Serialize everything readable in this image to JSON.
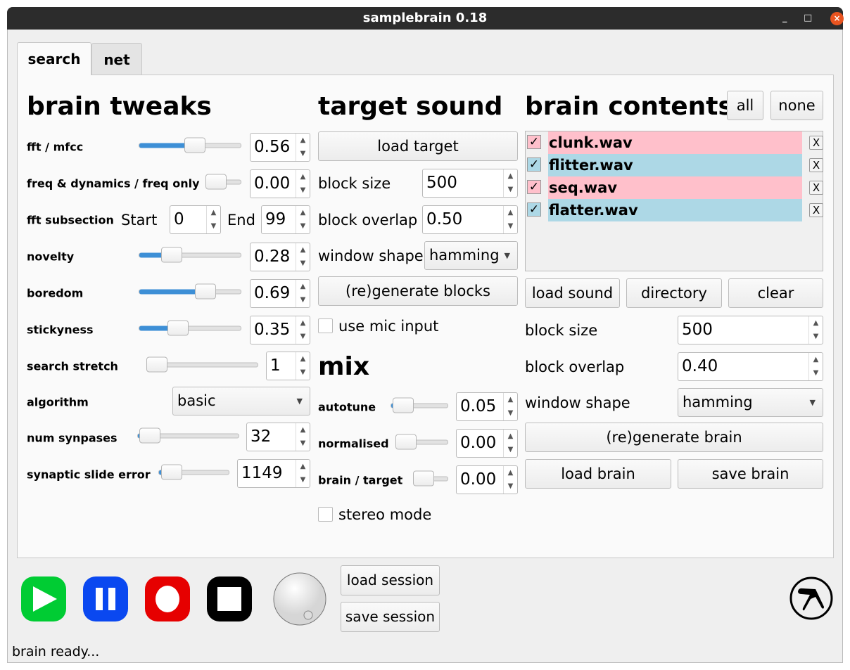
{
  "window": {
    "title": "samplebrain 0.18",
    "controls": {
      "minimize": "_",
      "maximize": "□",
      "close": "×"
    }
  },
  "tabs": [
    {
      "label": "search",
      "active": true
    },
    {
      "label": "net",
      "active": false
    }
  ],
  "brain_tweaks": {
    "heading": "brain tweaks",
    "fft_mfcc": {
      "label": "fft / mfcc",
      "slider": 0.56,
      "value": "0.56"
    },
    "freq_dynamics": {
      "label": "freq & dynamics / freq only",
      "slider": 0.0,
      "value": "0.00"
    },
    "fft_subsection": {
      "label": "fft subsection",
      "start_label": "Start",
      "start": "0",
      "end_label": "End",
      "end": "99"
    },
    "novelty": {
      "label": "novelty",
      "slider": 0.28,
      "value": "0.28"
    },
    "boredom": {
      "label": "boredom",
      "slider": 0.69,
      "value": "0.69"
    },
    "stickyness": {
      "label": "stickyness",
      "slider": 0.35,
      "value": "0.35"
    },
    "search_stretch": {
      "label": "search stretch",
      "slider": 0.0,
      "value": "1"
    },
    "algorithm": {
      "label": "algorithm",
      "value": "basic"
    },
    "num_synapses": {
      "label": "num synpases",
      "slider": 0.03,
      "value": "32"
    },
    "synaptic_slide_error": {
      "label": "synaptic slide error",
      "slider": 0.05,
      "value": "1149"
    }
  },
  "target_sound": {
    "heading": "target sound",
    "load_target": "load target",
    "block_size": {
      "label": "block size",
      "value": "500"
    },
    "block_overlap": {
      "label": "block overlap",
      "value": "0.50"
    },
    "window_shape": {
      "label": "window shape",
      "value": "hamming"
    },
    "regenerate": "(re)generate blocks",
    "use_mic": {
      "label": "use mic input",
      "checked": false
    }
  },
  "mix": {
    "heading": "mix",
    "autotune": {
      "label": "autotune",
      "slider": 0.05,
      "value": "0.05"
    },
    "normalised": {
      "label": "normalised",
      "slider": 0.0,
      "value": "0.00"
    },
    "brain_target": {
      "label": "brain / target",
      "slider": 0.0,
      "value": "0.00"
    },
    "stereo": {
      "label": "stereo mode",
      "checked": false
    }
  },
  "brain_contents": {
    "heading": "brain contents",
    "all": "all",
    "none": "none",
    "items": [
      {
        "name": "clunk.wav",
        "checked": true,
        "color": "#ffc0cb",
        "remove": "X"
      },
      {
        "name": "flitter.wav",
        "checked": true,
        "color": "#add8e6",
        "remove": "X"
      },
      {
        "name": "seq.wav",
        "checked": true,
        "color": "#ffc0cb",
        "remove": "X"
      },
      {
        "name": "flatter.wav",
        "checked": true,
        "color": "#add8e6",
        "remove": "X"
      }
    ],
    "load_sound": "load sound",
    "directory": "directory",
    "clear": "clear",
    "block_size": {
      "label": "block size",
      "value": "500"
    },
    "block_overlap": {
      "label": "block overlap",
      "value": "0.40"
    },
    "window_shape": {
      "label": "window shape",
      "value": "hamming"
    },
    "regenerate": "(re)generate brain",
    "load_brain": "load brain",
    "save_brain": "save brain"
  },
  "transport": {
    "play_color": "#00cc33",
    "pause_color": "#0a48f0",
    "record_color": "#e60000",
    "stop_color": "#000000"
  },
  "session": {
    "load": "load session",
    "save": "save session"
  },
  "status": "brain ready..."
}
